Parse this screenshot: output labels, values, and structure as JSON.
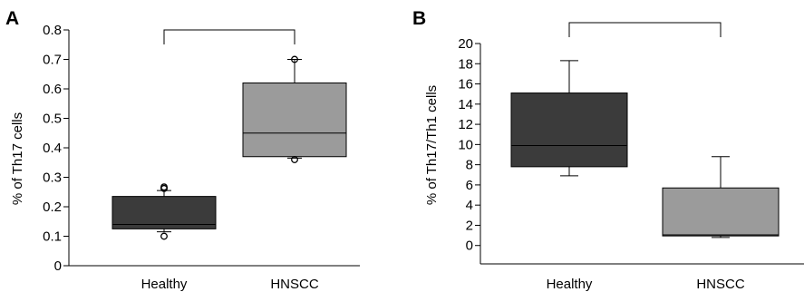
{
  "chart_data": [
    {
      "type": "box",
      "panel_label": "A",
      "ylabel": "% of Th17 cells",
      "ylim": [
        0,
        0.8
      ],
      "yticks": [
        "0",
        "0.1",
        "0.2",
        "0.3",
        "0.4",
        "0.5",
        "0.6",
        "0.7",
        "0.8"
      ],
      "ytick_values": [
        0,
        0.1,
        0.2,
        0.3,
        0.4,
        0.5,
        0.6,
        0.7,
        0.8
      ],
      "categories": [
        "Healthy",
        "HNSCC"
      ],
      "boxes": [
        {
          "category": "Healthy",
          "whisker_low": 0.115,
          "q1": 0.125,
          "median": 0.14,
          "q3": 0.235,
          "whisker_high": 0.255,
          "outliers": [
            0.1,
            0.262,
            0.267
          ],
          "color": "#3b3b3b"
        },
        {
          "category": "HNSCC",
          "whisker_low": 0.365,
          "q1": 0.37,
          "median": 0.45,
          "q3": 0.62,
          "whisker_high": 0.7,
          "outliers": [
            0.36,
            0.7
          ],
          "color": "#9b9b9b"
        }
      ],
      "comparison_bracket": true,
      "grid": false
    },
    {
      "type": "box",
      "panel_label": "B",
      "ylabel": "% of Th17/Th1 cells",
      "ylim": [
        -2,
        20
      ],
      "yticks": [
        "0",
        "2",
        "4",
        "6",
        "8",
        "10",
        "12",
        "14",
        "16",
        "18",
        "20"
      ],
      "ytick_values": [
        0,
        2,
        4,
        6,
        8,
        10,
        12,
        14,
        16,
        18,
        20
      ],
      "categories": [
        "Healthy",
        "HNSCC"
      ],
      "boxes": [
        {
          "category": "Healthy",
          "whisker_low": 6.9,
          "q1": 7.8,
          "median": 9.9,
          "q3": 15.1,
          "whisker_high": 18.3,
          "outliers": [],
          "color": "#3b3b3b"
        },
        {
          "category": "HNSCC",
          "whisker_low": 0.8,
          "q1": 0.95,
          "median": 1.05,
          "q3": 5.7,
          "whisker_high": 8.8,
          "outliers": [],
          "color": "#9b9b9b"
        }
      ],
      "comparison_bracket": true,
      "grid": false
    }
  ]
}
